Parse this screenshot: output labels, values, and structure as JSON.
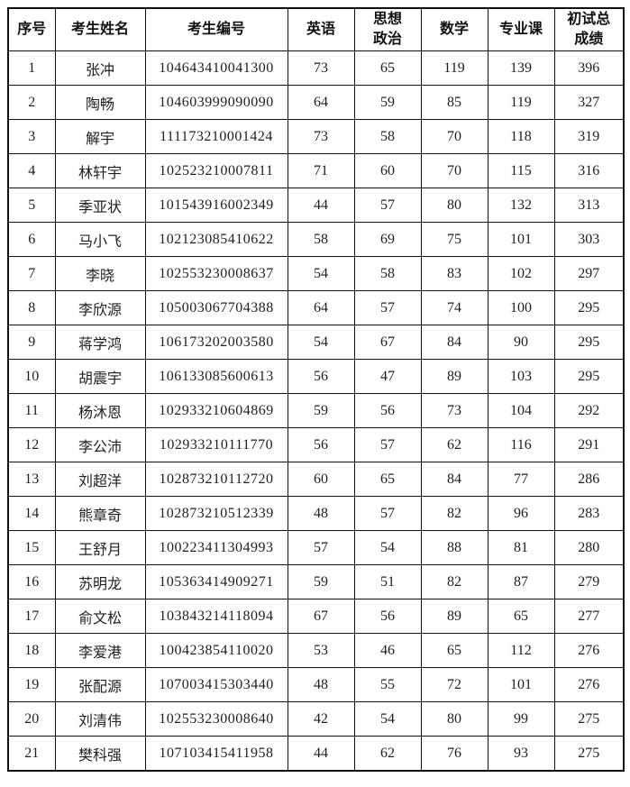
{
  "table": {
    "columns": [
      "序号",
      "考生姓名",
      "考生编号",
      "英语",
      "思想\n政治",
      "数学",
      "专业课",
      "初试总\n成绩"
    ],
    "rows": [
      [
        "1",
        "张冲",
        "104643410041300",
        "73",
        "65",
        "119",
        "139",
        "396"
      ],
      [
        "2",
        "陶畅",
        "104603999090090",
        "64",
        "59",
        "85",
        "119",
        "327"
      ],
      [
        "3",
        "解宇",
        "111173210001424",
        "73",
        "58",
        "70",
        "118",
        "319"
      ],
      [
        "4",
        "林轩宇",
        "102523210007811",
        "71",
        "60",
        "70",
        "115",
        "316"
      ],
      [
        "5",
        "季亚状",
        "101543916002349",
        "44",
        "57",
        "80",
        "132",
        "313"
      ],
      [
        "6",
        "马小飞",
        "102123085410622",
        "58",
        "69",
        "75",
        "101",
        "303"
      ],
      [
        "7",
        "李晓",
        "102553230008637",
        "54",
        "58",
        "83",
        "102",
        "297"
      ],
      [
        "8",
        "李欣源",
        "105003067704388",
        "64",
        "57",
        "74",
        "100",
        "295"
      ],
      [
        "9",
        "蒋学鸿",
        "106173202003580",
        "54",
        "67",
        "84",
        "90",
        "295"
      ],
      [
        "10",
        "胡震宇",
        "106133085600613",
        "56",
        "47",
        "89",
        "103",
        "295"
      ],
      [
        "11",
        "杨沐恩",
        "102933210604869",
        "59",
        "56",
        "73",
        "104",
        "292"
      ],
      [
        "12",
        "李公沛",
        "102933210111770",
        "56",
        "57",
        "62",
        "116",
        "291"
      ],
      [
        "13",
        "刘超洋",
        "102873210112720",
        "60",
        "65",
        "84",
        "77",
        "286"
      ],
      [
        "14",
        "熊章奇",
        "102873210512339",
        "48",
        "57",
        "82",
        "96",
        "283"
      ],
      [
        "15",
        "王舒月",
        "100223411304993",
        "57",
        "54",
        "88",
        "81",
        "280"
      ],
      [
        "16",
        "苏明龙",
        "105363414909271",
        "59",
        "51",
        "82",
        "87",
        "279"
      ],
      [
        "17",
        "俞文松",
        "103843214118094",
        "67",
        "56",
        "89",
        "65",
        "277"
      ],
      [
        "18",
        "李爱港",
        "100423854110020",
        "53",
        "46",
        "65",
        "112",
        "276"
      ],
      [
        "19",
        "张配源",
        "107003415303440",
        "48",
        "55",
        "72",
        "101",
        "276"
      ],
      [
        "20",
        "刘清伟",
        "102553230008640",
        "42",
        "54",
        "80",
        "99",
        "275"
      ],
      [
        "21",
        "樊科强",
        "107103415411958",
        "44",
        "62",
        "76",
        "93",
        "275"
      ]
    ]
  }
}
